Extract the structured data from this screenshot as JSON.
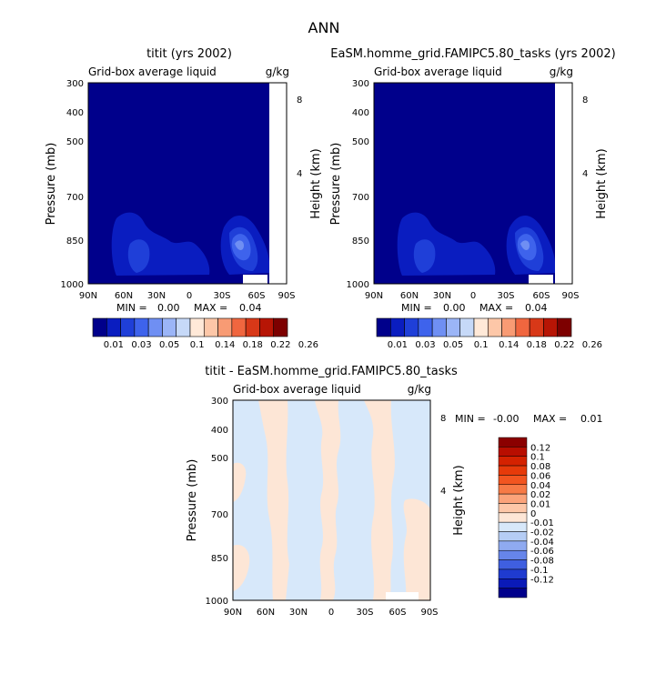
{
  "figure_title": "ANN",
  "chart_data": [
    {
      "type": "heatmap",
      "title": "titit (yrs 2002)",
      "subtitle_left": "Grid-box average liquid",
      "subtitle_right": "g/kg",
      "ylabel": "Pressure (mb)",
      "ylabel_right": "Height (km)",
      "xticks": [
        "90N",
        "60N",
        "30N",
        "0",
        "30S",
        "60S",
        "90S"
      ],
      "yticks": [
        "300",
        "400",
        "500",
        "700",
        "850",
        "1000"
      ],
      "yticks_right": [
        "8",
        "4"
      ],
      "min_label": "MIN =",
      "min_value": "0.00",
      "max_label": "MAX =",
      "max_value": "0.04"
    },
    {
      "type": "heatmap",
      "title": "EaSM.homme_grid.FAMIPC5.80_tasks (yrs 2002)",
      "subtitle_left": "Grid-box average liquid",
      "subtitle_right": "g/kg",
      "ylabel": "Pressure (mb)",
      "ylabel_right": "Height (km)",
      "xticks": [
        "90N",
        "60N",
        "30N",
        "0",
        "30S",
        "60S",
        "90S"
      ],
      "yticks": [
        "300",
        "400",
        "500",
        "700",
        "850",
        "1000"
      ],
      "yticks_right": [
        "8",
        "4"
      ],
      "min_label": "MIN =",
      "min_value": "0.00",
      "max_label": "MAX =",
      "max_value": "0.04"
    },
    {
      "type": "heatmap",
      "title": "titit - EaSM.homme_grid.FAMIPC5.80_tasks",
      "subtitle_left": "Grid-box average liquid",
      "subtitle_right": "g/kg",
      "ylabel": "Pressure (mb)",
      "ylabel_right": "Height (km)",
      "xticks": [
        "90N",
        "60N",
        "30N",
        "0",
        "30S",
        "60S",
        "90S"
      ],
      "yticks": [
        "300",
        "400",
        "500",
        "700",
        "850",
        "1000"
      ],
      "yticks_right": [
        "8",
        "4"
      ],
      "min_label": "MIN =",
      "min_value": "-0.00",
      "max_label": "MAX =",
      "max_value": "0.01"
    }
  ],
  "colorbar_top": {
    "labels": [
      "0.01",
      "0.03",
      "0.05",
      "0.1",
      "0.14",
      "0.18",
      "0.22",
      "0.26"
    ],
    "colors": [
      "#00008b",
      "#0a1dc0",
      "#1f3fd8",
      "#3e63ec",
      "#6f8ff3",
      "#9bb5f7",
      "#c6d9f8",
      "#ffe9d8",
      "#fdc7a8",
      "#f89b74",
      "#f0663f",
      "#d83818",
      "#b71505",
      "#7d0000"
    ]
  },
  "colorbar_diff": {
    "labels": [
      "0.12",
      "0.1",
      "0.08",
      "0.06",
      "0.04",
      "0.02",
      "0.01",
      "0",
      "-0.01",
      "-0.02",
      "-0.04",
      "-0.06",
      "-0.08",
      "-0.1",
      "-0.12"
    ],
    "colors": [
      "#8b0000",
      "#b80e00",
      "#d42200",
      "#e63a0a",
      "#f25520",
      "#f77a46",
      "#fba37a",
      "#fdc7a8",
      "#fde6d6",
      "#d7e8fa",
      "#b5cdf5",
      "#8faaf0",
      "#6685ea",
      "#3f5fe0",
      "#1f3bd0",
      "#0a1ab8",
      "#00008b"
    ]
  },
  "colors": {
    "field_bg": "#00008b",
    "level2": "#0a1dc0",
    "level3": "#1f3fd8",
    "level4": "#3e63ec",
    "level5": "#6f8ff3",
    "diff_neg": "#d7e8fa",
    "diff_pos": "#fde6d6"
  }
}
